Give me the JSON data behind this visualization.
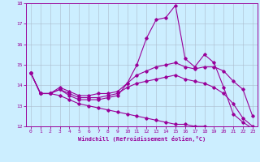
{
  "xlabel": "Windchill (Refroidissement éolien,°C)",
  "background_color": "#cceeff",
  "line_color": "#990099",
  "grid_color": "#aabbcc",
  "x": [
    0,
    1,
    2,
    3,
    4,
    5,
    6,
    7,
    8,
    9,
    10,
    11,
    12,
    13,
    14,
    15,
    16,
    17,
    18,
    19,
    20,
    21,
    22,
    23
  ],
  "line1": [
    14.6,
    13.6,
    13.6,
    13.8,
    13.5,
    13.3,
    13.3,
    13.3,
    13.4,
    13.5,
    14.1,
    15.0,
    16.3,
    17.2,
    17.3,
    17.9,
    15.3,
    14.9,
    15.5,
    15.1,
    13.9,
    12.6,
    12.2,
    11.9
  ],
  "line2": [
    14.6,
    13.6,
    13.6,
    13.9,
    13.7,
    13.5,
    13.5,
    13.6,
    13.6,
    13.7,
    14.1,
    14.5,
    14.7,
    14.9,
    15.0,
    15.1,
    14.9,
    14.8,
    14.9,
    14.9,
    14.7,
    14.2,
    13.8,
    12.5
  ],
  "line3": [
    14.6,
    13.6,
    13.6,
    13.8,
    13.6,
    13.4,
    13.4,
    13.4,
    13.5,
    13.6,
    13.9,
    14.1,
    14.2,
    14.3,
    14.4,
    14.5,
    14.3,
    14.2,
    14.1,
    13.9,
    13.6,
    13.1,
    12.4,
    12.0
  ],
  "line4": [
    14.6,
    13.6,
    13.6,
    13.5,
    13.3,
    13.1,
    13.0,
    12.9,
    12.8,
    12.7,
    12.6,
    12.5,
    12.4,
    12.3,
    12.2,
    12.1,
    12.1,
    12.0,
    12.0,
    11.9,
    11.9,
    11.8,
    11.8,
    11.9
  ],
  "ylim": [
    12,
    18
  ],
  "xlim": [
    0,
    23
  ],
  "yticks": [
    12,
    13,
    14,
    15,
    16,
    17,
    18
  ],
  "xticks": [
    0,
    1,
    2,
    3,
    4,
    5,
    6,
    7,
    8,
    9,
    10,
    11,
    12,
    13,
    14,
    15,
    16,
    17,
    18,
    19,
    20,
    21,
    22,
    23
  ]
}
